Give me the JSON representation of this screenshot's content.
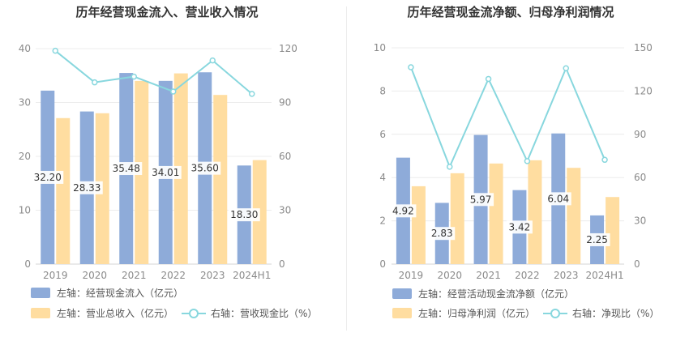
{
  "colors": {
    "bar_primary": "#8eabd9",
    "bar_secondary": "#ffdda0",
    "line": "#88d7de",
    "axis_text": "#8a8a8a",
    "grid": "#ececec",
    "title": "#333333"
  },
  "chart_data": [
    {
      "type": "bar",
      "title": "历年经营现金流入、营业收入情况",
      "categories": [
        "2019",
        "2020",
        "2021",
        "2022",
        "2023",
        "2024H1"
      ],
      "left_axis": {
        "ticks": [
          "0",
          "10",
          "20",
          "30",
          "40"
        ],
        "ylim": [
          0,
          40
        ]
      },
      "right_axis": {
        "ticks": [
          "0",
          "30",
          "60",
          "90",
          "120"
        ],
        "ylim": [
          0,
          120
        ]
      },
      "series": [
        {
          "name": "左轴：经营现金流入（亿元）",
          "kind": "bar",
          "axis": "left",
          "values": [
            32.2,
            28.33,
            35.48,
            34.01,
            35.6,
            18.3
          ],
          "labels": [
            "32.20",
            "28.33",
            "35.48",
            "34.01",
            "35.60",
            "18.30"
          ]
        },
        {
          "name": "左轴：营业总收入（亿元）",
          "kind": "bar",
          "axis": "left",
          "values": [
            27.1,
            28.0,
            34.0,
            35.4,
            31.4,
            19.3
          ]
        },
        {
          "name": "右轴：营收现金比（%）",
          "kind": "line",
          "axis": "right",
          "values": [
            118.8,
            101.2,
            104.4,
            96.1,
            113.4,
            94.8
          ]
        }
      ]
    },
    {
      "type": "bar",
      "title": "历年经营现金流净额、归母净利润情况",
      "categories": [
        "2019",
        "2020",
        "2021",
        "2022",
        "2023",
        "2024H1"
      ],
      "left_axis": {
        "ticks": [
          "0",
          "2",
          "4",
          "6",
          "8",
          "10"
        ],
        "ylim": [
          0,
          10
        ]
      },
      "right_axis": {
        "ticks": [
          "0",
          "30",
          "60",
          "90",
          "120",
          "150"
        ],
        "ylim": [
          0,
          150
        ]
      },
      "series": [
        {
          "name": "左轴：经营活动现金流净额（亿元）",
          "kind": "bar",
          "axis": "left",
          "values": [
            4.92,
            2.83,
            5.97,
            3.42,
            6.04,
            2.25
          ],
          "labels": [
            "4.92",
            "2.83",
            "5.97",
            "3.42",
            "6.04",
            "2.25"
          ]
        },
        {
          "name": "左轴：归母净利润（亿元）",
          "kind": "bar",
          "axis": "left",
          "values": [
            3.6,
            4.2,
            4.65,
            4.8,
            4.45,
            3.1
          ]
        },
        {
          "name": "右轴：净现比（%）",
          "kind": "line",
          "axis": "right",
          "values": [
            136.5,
            67.5,
            128.4,
            71.4,
            135.8,
            72.3
          ]
        }
      ]
    }
  ]
}
